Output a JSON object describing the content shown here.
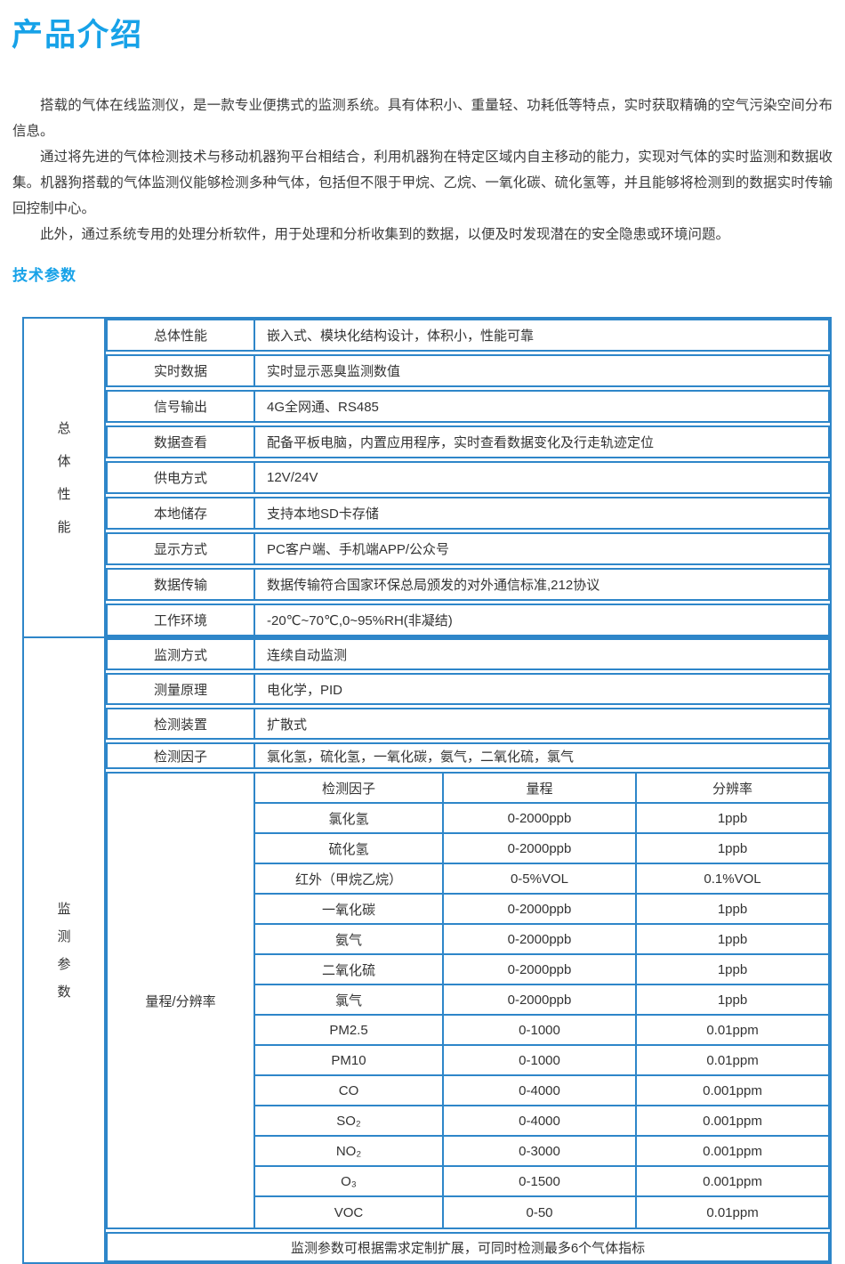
{
  "page": {
    "title": "产品介绍",
    "tech_params_title": "技术参数"
  },
  "colors": {
    "accent_blue": "#17a2e8",
    "table_border_blue": "#2e86c9",
    "body_text": "#3c3c3c"
  },
  "intro": {
    "paragraphs": [
      "搭载的气体在线监测仪，是一款专业便携式的监测系统。具有体积小、重量轻、功耗低等特点，实时获取精确的空气污染空间分布信息。",
      "通过将先进的气体检测技术与移动机器狗平台相结合，利用机器狗在特定区域内自主移动的能力，实现对气体的实时监测和数据收集。机器狗搭载的气体监测仪能够检测多种气体，包括但不限于甲烷、乙烷、一氧化碳、硫化氢等，并且能够将检测到的数据实时传输回控制中心。",
      "此外，通过系统专用的处理分析软件，用于处理和分析收集到的数据，以便及时发现潜在的安全隐患或环境问题。"
    ]
  },
  "table": {
    "sections": [
      {
        "group_label": "总体性能",
        "group_chars": [
          "总",
          "体",
          "性",
          "能"
        ],
        "rows": [
          {
            "label": "总体性能",
            "value": "嵌入式、模块化结构设计，体积小，性能可靠"
          },
          {
            "label": "实时数据",
            "value": "实时显示恶臭监测数值"
          },
          {
            "label": "信号输出",
            "value": "4G全网通、RS485"
          },
          {
            "label": "数据查看",
            "value": "配备平板电脑，内置应用程序，实时查看数据变化及行走轨迹定位"
          },
          {
            "label": "供电方式",
            "value": "12V/24V"
          },
          {
            "label": "本地储存",
            "value": "支持本地SD卡存储"
          },
          {
            "label": "显示方式",
            "value": "PC客户端、手机端APP/公众号"
          },
          {
            "label": "数据传输",
            "value": "数据传输符合国家环保总局颁发的对外通信标准,212协议"
          },
          {
            "label": "工作环境",
            "value": "-20℃~70℃,0~95%RH(非凝结)"
          }
        ]
      },
      {
        "group_label": "监测参数",
        "group_chars": [
          "监",
          "测",
          "参",
          "数"
        ],
        "rows": [
          {
            "label": "监测方式",
            "value": "连续自动监测"
          },
          {
            "label": "测量原理",
            "value": "电化学，PID"
          },
          {
            "label": "检测装置",
            "value": "扩散式"
          },
          {
            "label": "检测因子",
            "value": "氯化氢，硫化氢，一氧化碳，氨气，二氧化硫，氯气"
          }
        ],
        "range_table": {
          "label": "量程/分辨率",
          "columns": [
            "检测因子",
            "量程",
            "分辨率"
          ],
          "rows": [
            [
              "氯化氢",
              "0-2000ppb",
              "1ppb"
            ],
            [
              "硫化氢",
              "0-2000ppb",
              "1ppb"
            ],
            [
              "红外（甲烷乙烷）",
              "0-5%VOL",
              "0.1%VOL"
            ],
            [
              "一氧化碳",
              "0-2000ppb",
              "1ppb"
            ],
            [
              "氨气",
              "0-2000ppb",
              "1ppb"
            ],
            [
              "二氧化硫",
              "0-2000ppb",
              "1ppb"
            ],
            [
              "氯气",
              "0-2000ppb",
              "1ppb"
            ],
            [
              "PM2.5",
              "0-1000",
              "0.01ppm"
            ],
            [
              "PM10",
              "0-1000",
              "0.01ppm"
            ],
            [
              "CO",
              "0-4000",
              "0.001ppm"
            ],
            [
              "SO₂",
              "0-4000",
              "0.001ppm"
            ],
            [
              "NO₂",
              "0-3000",
              "0.001ppm"
            ],
            [
              "O₃",
              "0-1500",
              "0.001ppm"
            ],
            [
              "VOC",
              "0-50",
              "0.01ppm"
            ]
          ]
        },
        "note": "监测参数可根据需求定制扩展，可同时检测最多6个气体指标"
      }
    ]
  }
}
